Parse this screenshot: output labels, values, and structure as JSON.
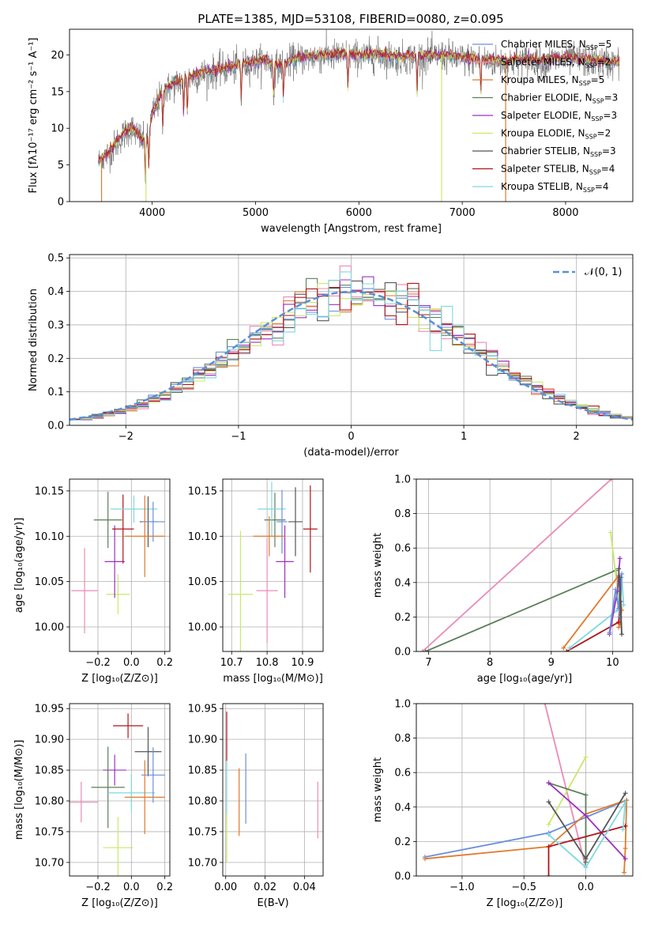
{
  "figure": {
    "title": "PLATE=1385, MJD=53108, FIBERID=0080, z=0.095"
  },
  "colors": {
    "chabrier_miles": "#6a8fdc",
    "salpeter_miles": "#e98bb8",
    "kroupa_miles": "#e07a2c",
    "chabrier_elodie": "#5b7f5b",
    "salpeter_elodie": "#9b30c0",
    "kroupa_elodie": "#c9e86a",
    "chabrier_stelib": "#555555",
    "salpeter_stelib": "#b0151a",
    "kroupa_stelib": "#7fd8df",
    "normal": "#5b8fd6",
    "grid": "#b0b0b0"
  },
  "models": [
    {
      "key": "chabrier_miles",
      "label": "Chabrier MILES, N",
      "sub": "SSP",
      "n": "=5"
    },
    {
      "key": "salpeter_miles",
      "label": "Salpeter MILES, N",
      "sub": "SSP",
      "n": "=2"
    },
    {
      "key": "kroupa_miles",
      "label": "Kroupa MILES, N",
      "sub": "SSP",
      "n": "=5"
    },
    {
      "key": "chabrier_elodie",
      "label": "Chabrier ELODIE, N",
      "sub": "SSP",
      "n": "=3"
    },
    {
      "key": "salpeter_elodie",
      "label": "Salpeter ELODIE, N",
      "sub": "SSP",
      "n": "=3"
    },
    {
      "key": "kroupa_elodie",
      "label": "Kroupa ELODIE, N",
      "sub": "SSP",
      "n": "=2"
    },
    {
      "key": "chabrier_stelib",
      "label": "Chabrier STELIB, N",
      "sub": "SSP",
      "n": "=3"
    },
    {
      "key": "salpeter_stelib",
      "label": "Salpeter STELIB, N",
      "sub": "SSP",
      "n": "=4"
    },
    {
      "key": "kroupa_stelib",
      "label": "Kroupa STELIB, N",
      "sub": "SSP",
      "n": "=4"
    }
  ],
  "chart_data": [
    {
      "id": "spectrum",
      "type": "line",
      "title": "PLATE=1385, MJD=53108, FIBERID=0080, z=0.095",
      "xlabel": "wavelength [Angstrom, rest frame]",
      "ylabel": "Flux [fλ10⁻¹⁷ erg cm⁻² s⁻¹ A⁻¹]",
      "xlim": [
        3200,
        8650
      ],
      "ylim": [
        0,
        23.5
      ],
      "xticks": [
        4000,
        5000,
        6000,
        7000,
        8000
      ],
      "yticks": [
        0,
        5,
        10,
        15,
        20
      ],
      "continuum": {
        "x": [
          3480,
          3600,
          3700,
          3800,
          3900,
          3950,
          4000,
          4100,
          4200,
          4300,
          4500,
          4700,
          4900,
          5100,
          5200,
          5400,
          5600,
          5800,
          6000,
          6200,
          6400,
          6600,
          6800,
          7000,
          7200,
          7400,
          7600,
          7800,
          8000,
          8200,
          8500
        ],
        "y": [
          5.5,
          7.0,
          9.0,
          10.2,
          8.5,
          8.2,
          12.0,
          15.0,
          16.0,
          16.8,
          17.6,
          18.2,
          18.8,
          19.3,
          18.5,
          19.6,
          19.9,
          20.1,
          20.0,
          20.1,
          19.7,
          19.9,
          20.0,
          19.6,
          19.4,
          19.1,
          19.4,
          19.2,
          19.6,
          19.3,
          19.0
        ]
      },
      "absorption_lines": [
        3934,
        3968,
        4102,
        4304,
        4340,
        4861,
        5175,
        5270,
        5894,
        6563,
        7180
      ],
      "spikes": [
        {
          "x": 3510,
          "model": "kroupa_miles"
        },
        {
          "x": 3940,
          "model": "kroupa_elodie"
        },
        {
          "x": 6800,
          "model": "kroupa_elodie"
        },
        {
          "x": 7420,
          "model": "kroupa_miles"
        }
      ],
      "legend_position": "upper right"
    },
    {
      "id": "residuals",
      "type": "step-histogram",
      "xlabel": "(data-model)/error",
      "ylabel": "Normed distribution",
      "xlim": [
        -2.5,
        2.5
      ],
      "ylim": [
        0,
        0.51
      ],
      "xticks": [
        -2,
        -1,
        0,
        1,
        2
      ],
      "yticks": [
        0.0,
        0.1,
        0.2,
        0.3,
        0.4,
        0.5
      ],
      "bin_width": 0.1,
      "grid": true,
      "normal_label": "𝒩(0, 1)",
      "legend_position": "upper right"
    },
    {
      "id": "age_vs_z",
      "type": "errorbar",
      "xlabel": "Z [log₁₀(Z/Z⊙)]",
      "ylabel": "age  [log₁₀(age/yr)]",
      "xlim": [
        -0.37,
        0.23
      ],
      "ylim": [
        9.973,
        10.163
      ],
      "xticks": [
        -0.2,
        0.0,
        0.2
      ],
      "yticks": [
        10.0,
        10.05,
        10.1,
        10.15
      ],
      "points": [
        {
          "model": "salpeter_miles",
          "x": -0.28,
          "y": 10.04,
          "xerr": 0.08,
          "yerr": 0.047
        },
        {
          "model": "kroupa_elodie",
          "x": -0.08,
          "y": 10.036,
          "xerr": 0.07,
          "yerr": 0.022
        },
        {
          "model": "salpeter_elodie",
          "x": -0.1,
          "y": 10.072,
          "xerr": 0.06,
          "yerr": 0.04
        },
        {
          "model": "chabrier_elodie",
          "x": -0.14,
          "y": 10.118,
          "xerr": 0.085,
          "yerr": 0.031
        },
        {
          "model": "salpeter_stelib",
          "x": -0.05,
          "y": 10.108,
          "xerr": 0.065,
          "yerr": 0.038
        },
        {
          "model": "kroupa_stelib",
          "x": 0.015,
          "y": 10.13,
          "xerr": 0.14,
          "yerr": 0.015
        },
        {
          "model": "chabrier_stelib",
          "x": 0.1,
          "y": 10.116,
          "xerr": 0.05,
          "yerr": 0.028
        },
        {
          "model": "chabrier_miles",
          "x": 0.13,
          "y": 10.116,
          "xerr": 0.07,
          "yerr": 0.022
        },
        {
          "model": "kroupa_miles",
          "x": 0.08,
          "y": 10.1,
          "xerr": 0.12,
          "yerr": 0.045
        }
      ]
    },
    {
      "id": "age_vs_mass",
      "type": "errorbar",
      "xlabel": "mass [log₁₀(M/M⊙)]",
      "ylabel": "",
      "xlim": [
        10.675,
        10.958
      ],
      "ylim": [
        9.973,
        10.163
      ],
      "xticks": [
        10.7,
        10.8,
        10.9
      ],
      "yticks": [
        10.0,
        10.05,
        10.1,
        10.15
      ],
      "points": [
        {
          "model": "salpeter_miles",
          "x": 10.8,
          "y": 10.04,
          "xerr": 0.03,
          "yerr": 0.058
        },
        {
          "model": "kroupa_elodie",
          "x": 10.725,
          "y": 10.036,
          "xerr": 0.035,
          "yerr": 0.07
        },
        {
          "model": "salpeter_elodie",
          "x": 10.85,
          "y": 10.072,
          "xerr": 0.025,
          "yerr": 0.04
        },
        {
          "model": "chabrier_elodie",
          "x": 10.822,
          "y": 10.118,
          "xerr": 0.03,
          "yerr": 0.03
        },
        {
          "model": "salpeter_stelib",
          "x": 10.922,
          "y": 10.108,
          "xerr": 0.02,
          "yerr": 0.048
        },
        {
          "model": "kroupa_stelib",
          "x": 10.813,
          "y": 10.13,
          "xerr": 0.04,
          "yerr": 0.03
        },
        {
          "model": "chabrier_stelib",
          "x": 10.88,
          "y": 10.116,
          "xerr": 0.02,
          "yerr": 0.038
        },
        {
          "model": "chabrier_miles",
          "x": 10.842,
          "y": 10.116,
          "xerr": 0.015,
          "yerr": 0.035
        },
        {
          "model": "kroupa_miles",
          "x": 10.806,
          "y": 10.1,
          "xerr": 0.045,
          "yerr": 0.022
        }
      ]
    },
    {
      "id": "weight_vs_age",
      "type": "line",
      "xlabel": "age  [log₁₀(age/yr)]",
      "ylabel": "mass weight",
      "xlim": [
        6.8,
        10.33
      ],
      "ylim": [
        0,
        1.0
      ],
      "xticks": [
        7,
        8,
        9,
        10
      ],
      "yticks": [
        0.0,
        0.2,
        0.4,
        0.6,
        0.8,
        1.0
      ],
      "series": [
        {
          "model": "salpeter_miles",
          "x": [
            6.9,
            9.98
          ],
          "y": [
            0.0,
            1.0
          ]
        },
        {
          "model": "chabrier_elodie",
          "x": [
            6.95,
            10.05,
            10.1
          ],
          "y": [
            0.0,
            0.47,
            0.3
          ]
        },
        {
          "model": "kroupa_elodie",
          "x": [
            9.97,
            10.1
          ],
          "y": [
            0.69,
            0.3
          ]
        },
        {
          "model": "kroupa_miles",
          "x": [
            9.2,
            10.1,
            10.15,
            10.12,
            10.1
          ],
          "y": [
            0.02,
            0.44,
            0.24,
            0.16,
            0.14
          ]
        },
        {
          "model": "salpeter_stelib",
          "x": [
            9.25,
            10.1,
            10.13
          ],
          "y": [
            0.0,
            0.17,
            0.29
          ]
        },
        {
          "model": "kroupa_stelib",
          "x": [
            9.3,
            10.08,
            10.15,
            10.18
          ],
          "y": [
            0.02,
            0.24,
            0.43,
            0.27
          ]
        },
        {
          "model": "salpeter_elodie",
          "x": [
            9.95,
            10.08,
            10.12
          ],
          "y": [
            0.1,
            0.35,
            0.54
          ]
        },
        {
          "model": "chabrier_miles",
          "x": [
            9.95,
            10.05,
            10.1,
            10.15,
            10.12
          ],
          "y": [
            0.11,
            0.36,
            0.25,
            0.45,
            0.2
          ]
        },
        {
          "model": "chabrier_stelib",
          "x": [
            10.1,
            10.15,
            10.12
          ],
          "y": [
            0.48,
            0.1,
            0.43
          ]
        }
      ]
    },
    {
      "id": "mass_vs_z",
      "type": "errorbar",
      "xlabel": "Z [log₁₀(Z/Z⊙)]",
      "ylabel": "mass [log₁₀(M/M⊙)]",
      "xlim": [
        -0.37,
        0.23
      ],
      "ylim": [
        10.678,
        10.958
      ],
      "xticks": [
        -0.2,
        0.0,
        0.2
      ],
      "yticks": [
        10.7,
        10.75,
        10.8,
        10.85,
        10.9,
        10.95
      ],
      "points": [
        {
          "model": "salpeter_miles",
          "x": -0.3,
          "y": 10.798,
          "xerr": 0.1,
          "yerr": 0.033
        },
        {
          "model": "kroupa_elodie",
          "x": -0.08,
          "y": 10.724,
          "xerr": 0.09,
          "yerr": 0.05
        },
        {
          "model": "salpeter_elodie",
          "x": -0.1,
          "y": 10.85,
          "xerr": 0.07,
          "yerr": 0.025
        },
        {
          "model": "chabrier_elodie",
          "x": -0.14,
          "y": 10.822,
          "xerr": 0.1,
          "yerr": 0.066
        },
        {
          "model": "salpeter_stelib",
          "x": -0.02,
          "y": 10.922,
          "xerr": 0.09,
          "yerr": 0.02
        },
        {
          "model": "kroupa_stelib",
          "x": 0.0,
          "y": 10.813,
          "xerr": 0.14,
          "yerr": 0.03
        },
        {
          "model": "chabrier_stelib",
          "x": 0.1,
          "y": 10.88,
          "xerr": 0.08,
          "yerr": 0.04
        },
        {
          "model": "chabrier_miles",
          "x": 0.13,
          "y": 10.842,
          "xerr": 0.07,
          "yerr": 0.045
        },
        {
          "model": "kroupa_miles",
          "x": 0.08,
          "y": 10.806,
          "xerr": 0.12,
          "yerr": 0.06
        }
      ]
    },
    {
      "id": "mass_vs_ebv",
      "type": "errorbar",
      "xlabel": "E(B-V)",
      "ylabel": "",
      "xlim": [
        -0.0015,
        0.0495
      ],
      "ylim": [
        10.678,
        10.958
      ],
      "xticks": [
        0.0,
        0.02,
        0.04
      ],
      "yticks": [
        10.7,
        10.75,
        10.8,
        10.85,
        10.9,
        10.95
      ],
      "points": [
        {
          "model": "salpeter_stelib",
          "x": 0.0005,
          "y": 10.905,
          "xerr": 0.0,
          "yerr": 0.04
        },
        {
          "model": "kroupa_stelib",
          "x": 0.0005,
          "y": 10.82,
          "xerr": 0.0,
          "yerr": 0.045
        },
        {
          "model": "kroupa_elodie",
          "x": 0.0005,
          "y": 10.74,
          "xerr": 0.0,
          "yerr": 0.04
        },
        {
          "model": "chabrier_miles",
          "x": 0.0102,
          "y": 10.82,
          "xerr": 0.0,
          "yerr": 0.057
        },
        {
          "model": "kroupa_miles",
          "x": 0.0068,
          "y": 10.798,
          "xerr": 0.0,
          "yerr": 0.055
        },
        {
          "model": "salpeter_miles",
          "x": 0.0468,
          "y": 10.785,
          "xerr": 0.0,
          "yerr": 0.046
        }
      ]
    },
    {
      "id": "weight_vs_z",
      "type": "line",
      "xlabel": "Z [log₁₀(Z/Z⊙)]",
      "ylabel": "mass weight",
      "xlim": [
        -1.37,
        0.38
      ],
      "ylim": [
        0,
        1.0
      ],
      "xticks": [
        -1.0,
        -0.5,
        0.0
      ],
      "yticks": [
        0.0,
        0.2,
        0.4,
        0.6,
        0.8,
        1.0
      ],
      "series": [
        {
          "model": "salpeter_miles",
          "x": [
            -0.33,
            0.0
          ],
          "y": [
            1.0,
            0.05
          ]
        },
        {
          "model": "chabrier_miles",
          "x": [
            -1.3,
            -0.3,
            0.33
          ],
          "y": [
            0.11,
            0.25,
            0.44
          ]
        },
        {
          "model": "kroupa_miles",
          "x": [
            -1.3,
            -0.3,
            0.0,
            0.33,
            0.32,
            0.31
          ],
          "y": [
            0.1,
            0.17,
            0.36,
            0.44,
            0.16,
            0.02
          ]
        },
        {
          "model": "kroupa_elodie",
          "x": [
            -0.3,
            0.0
          ],
          "y": [
            0.3,
            0.69
          ]
        },
        {
          "model": "chabrier_elodie",
          "x": [
            -0.3,
            0.0,
            0.0
          ],
          "y": [
            0.54,
            0.47,
            0.08
          ]
        },
        {
          "model": "salpeter_elodie",
          "x": [
            -0.3,
            0.0,
            0.32
          ],
          "y": [
            0.54,
            0.35,
            0.1
          ]
        },
        {
          "model": "chabrier_stelib",
          "x": [
            -0.3,
            0.0,
            0.32
          ],
          "y": [
            0.43,
            0.1,
            0.48
          ]
        },
        {
          "model": "salpeter_stelib",
          "x": [
            -0.3,
            -0.3,
            0.32
          ],
          "y": [
            0.0,
            0.17,
            0.29
          ]
        },
        {
          "model": "kroupa_stelib",
          "x": [
            -0.3,
            0.0,
            0.32,
            0.3
          ],
          "y": [
            0.24,
            0.05,
            0.43,
            0.27
          ]
        }
      ]
    }
  ]
}
